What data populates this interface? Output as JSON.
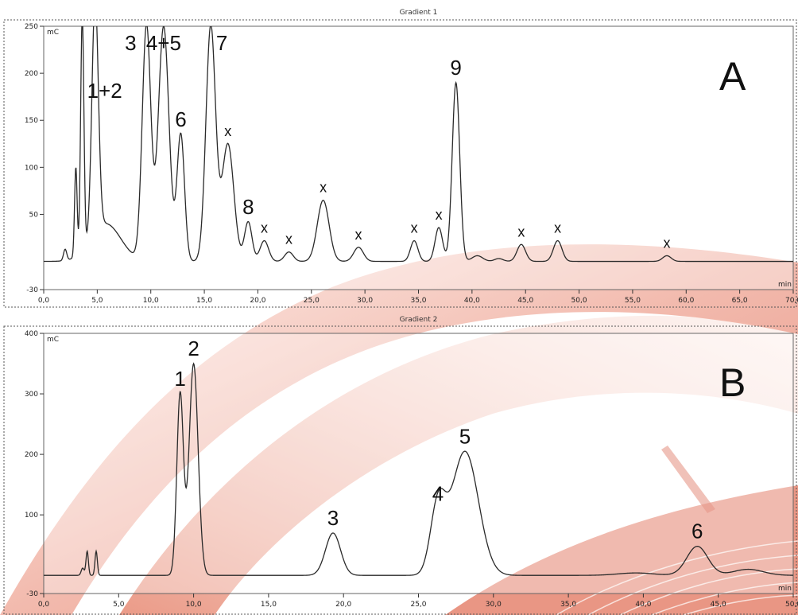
{
  "colors": {
    "trace": "#2a2a2a",
    "background": "#ffffff",
    "decoration": "#e8826b"
  },
  "chart_data": [
    {
      "type": "line",
      "panel_label": "A",
      "title": "Gradient 1",
      "y_unit": "mC",
      "x_unit": "min",
      "xlim": [
        0,
        70
      ],
      "ylim": [
        -30,
        250
      ],
      "x_ticks": [
        "0,0",
        "5,0",
        "10,0",
        "15,0",
        "20,0",
        "25,0",
        "30,0",
        "35,0",
        "40,0",
        "45,0",
        "50,0",
        "55,0",
        "60,0",
        "65,0",
        "70,0"
      ],
      "y_ticks": [
        "-30",
        "50",
        "100",
        "150",
        "200",
        "250"
      ],
      "baseline": 0,
      "peaks": [
        {
          "label": "",
          "x": 2.0,
          "y": 12,
          "w": 0.15
        },
        {
          "label": "",
          "x": 3.0,
          "y": 95,
          "w": 0.12
        },
        {
          "label": "",
          "x": 3.6,
          "y": 250,
          "w": 0.15
        },
        {
          "label": "1+2",
          "x": 4.8,
          "y": 250,
          "w": 0.3
        },
        {
          "label": "",
          "x": 5.8,
          "y": 40,
          "w": 1.4
        },
        {
          "label": "3",
          "x": 9.6,
          "y": 250,
          "w": 0.4
        },
        {
          "label": "4+5",
          "x": 11.2,
          "y": 250,
          "w": 0.5
        },
        {
          "label": "6",
          "x": 12.8,
          "y": 135,
          "w": 0.35
        },
        {
          "label": "7",
          "x": 15.6,
          "y": 250,
          "w": 0.45
        },
        {
          "label": "x",
          "x": 17.2,
          "y": 125,
          "w": 0.55
        },
        {
          "label": "8",
          "x": 19.1,
          "y": 42,
          "w": 0.35
        },
        {
          "label": "x",
          "x": 20.6,
          "y": 22,
          "w": 0.4
        },
        {
          "label": "x",
          "x": 22.9,
          "y": 10,
          "w": 0.4
        },
        {
          "label": "x",
          "x": 26.1,
          "y": 65,
          "w": 0.55
        },
        {
          "label": "x",
          "x": 29.4,
          "y": 15,
          "w": 0.45
        },
        {
          "label": "x",
          "x": 34.6,
          "y": 22,
          "w": 0.35
        },
        {
          "label": "x",
          "x": 36.9,
          "y": 36,
          "w": 0.35
        },
        {
          "label": "9",
          "x": 38.5,
          "y": 190,
          "w": 0.35
        },
        {
          "label": "",
          "x": 40.5,
          "y": 6,
          "w": 0.5
        },
        {
          "label": "",
          "x": 42.5,
          "y": 3,
          "w": 0.4
        },
        {
          "label": "x",
          "x": 44.6,
          "y": 18,
          "w": 0.4
        },
        {
          "label": "x",
          "x": 48.0,
          "y": 22,
          "w": 0.4
        },
        {
          "label": "x",
          "x": 58.2,
          "y": 6,
          "w": 0.4
        }
      ]
    },
    {
      "type": "line",
      "panel_label": "B",
      "title": "Gradient 2",
      "y_unit": "mC",
      "x_unit": "min",
      "xlim": [
        0,
        50
      ],
      "ylim": [
        -30,
        400
      ],
      "x_ticks": [
        "0,0",
        "5,0",
        "10,0",
        "15,0",
        "20,0",
        "25,0",
        "30,0",
        "35,0",
        "40,0",
        "45,0",
        "50,0"
      ],
      "y_ticks": [
        "-30",
        "100",
        "200",
        "300",
        "400"
      ],
      "baseline": 0,
      "peaks": [
        {
          "label": "",
          "x": 2.6,
          "y": 12,
          "w": 0.1
        },
        {
          "label": "",
          "x": 2.9,
          "y": 40,
          "w": 0.08
        },
        {
          "label": "",
          "x": 3.5,
          "y": 40,
          "w": 0.08
        },
        {
          "label": "1",
          "x": 9.1,
          "y": 300,
          "w": 0.22
        },
        {
          "label": "2",
          "x": 10.0,
          "y": 350,
          "w": 0.3
        },
        {
          "label": "3",
          "x": 19.3,
          "y": 70,
          "w": 0.5
        },
        {
          "label": "4",
          "x": 26.3,
          "y": 110,
          "w": 0.5
        },
        {
          "label": "5",
          "x": 28.1,
          "y": 205,
          "w": 0.9
        },
        {
          "label": "",
          "x": 39.5,
          "y": 4,
          "w": 1.2
        },
        {
          "label": "6",
          "x": 43.6,
          "y": 48,
          "w": 0.7
        },
        {
          "label": "",
          "x": 47.0,
          "y": 10,
          "w": 1.0
        }
      ]
    }
  ]
}
